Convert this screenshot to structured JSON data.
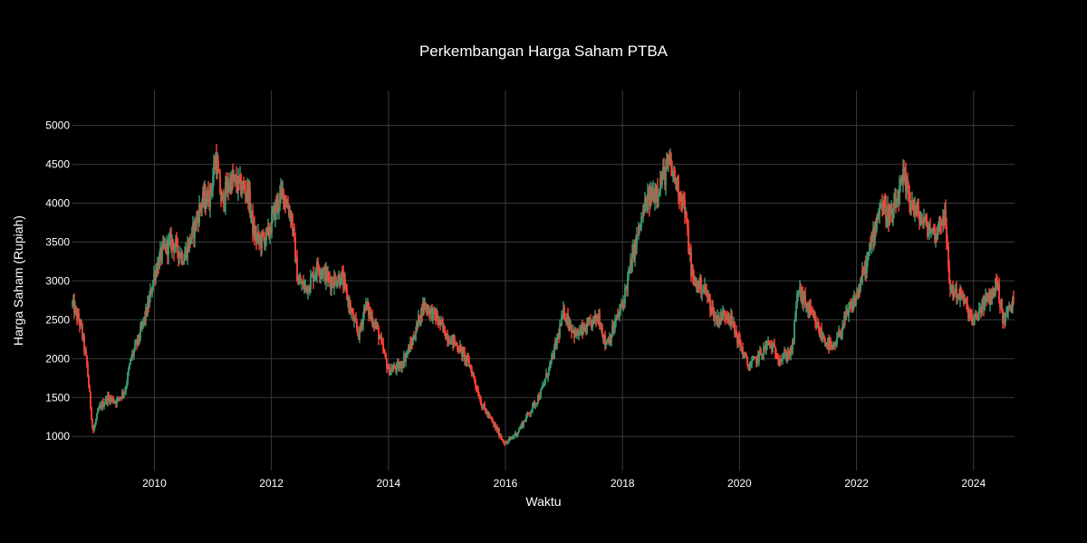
{
  "chart_data": {
    "type": "candlestick",
    "title": "Perkembangan Harga Saham PTBA",
    "xlabel": "Waktu",
    "ylabel": "Harga Saham (Rupiah)",
    "xlim": [
      2008.6,
      2024.7
    ],
    "ylim": [
      560,
      5450
    ],
    "x_ticks": [
      2010,
      2012,
      2014,
      2016,
      2018,
      2020,
      2022,
      2024
    ],
    "x_tick_labels": [
      "2010",
      "2012",
      "2014",
      "2016",
      "2018",
      "2020",
      "2022",
      "2024"
    ],
    "y_ticks": [
      1000,
      1500,
      2000,
      2500,
      3000,
      3500,
      4000,
      4500,
      5000
    ],
    "y_tick_labels": [
      "1000",
      "1500",
      "2000",
      "2500",
      "3000",
      "3500",
      "4000",
      "4500",
      "5000"
    ],
    "grid": true,
    "increasing_color": "#3d9970",
    "decreasing_color": "#ff4136",
    "price_path": {
      "x": [
        2008.6,
        2008.75,
        2008.85,
        2008.95,
        2009.05,
        2009.2,
        2009.35,
        2009.5,
        2009.6,
        2009.75,
        2009.9,
        2010.0,
        2010.15,
        2010.3,
        2010.5,
        2010.65,
        2010.8,
        2010.95,
        2011.05,
        2011.15,
        2011.3,
        2011.5,
        2011.6,
        2011.7,
        2011.8,
        2011.95,
        2012.05,
        2012.2,
        2012.35,
        2012.45,
        2012.6,
        2012.8,
        2013.0,
        2013.2,
        2013.4,
        2013.5,
        2013.6,
        2013.8,
        2014.0,
        2014.2,
        2014.4,
        2014.6,
        2014.8,
        2015.0,
        2015.2,
        2015.4,
        2015.6,
        2015.8,
        2016.0,
        2016.2,
        2016.4,
        2016.6,
        2016.8,
        2017.0,
        2017.2,
        2017.4,
        2017.6,
        2017.7,
        2017.8,
        2018.0,
        2018.2,
        2018.4,
        2018.6,
        2018.8,
        2018.9,
        2019.05,
        2019.2,
        2019.4,
        2019.6,
        2019.8,
        2020.0,
        2020.15,
        2020.3,
        2020.5,
        2020.7,
        2020.9,
        2021.0,
        2021.2,
        2021.4,
        2021.6,
        2021.8,
        2022.0,
        2022.2,
        2022.4,
        2022.6,
        2022.8,
        2023.0,
        2023.2,
        2023.35,
        2023.5,
        2023.6,
        2023.8,
        2024.0,
        2024.15,
        2024.3,
        2024.4,
        2024.5,
        2024.7
      ],
      "close": [
        2700,
        2400,
        1900,
        1050,
        1350,
        1500,
        1450,
        1600,
        2000,
        2300,
        2700,
        3100,
        3400,
        3500,
        3300,
        3600,
        4000,
        4100,
        4600,
        4000,
        4300,
        4200,
        4150,
        3600,
        3500,
        3600,
        3900,
        4150,
        3800,
        3000,
        2900,
        3200,
        3000,
        3050,
        2500,
        2300,
        2700,
        2400,
        1850,
        1900,
        2200,
        2700,
        2550,
        2300,
        2150,
        1900,
        1400,
        1150,
        900,
        1050,
        1300,
        1550,
        2000,
        2600,
        2300,
        2400,
        2550,
        2200,
        2300,
        2700,
        3400,
        4000,
        4200,
        4500,
        4300,
        4000,
        3000,
        2900,
        2500,
        2600,
        2200,
        1900,
        2000,
        2200,
        2000,
        2100,
        2900,
        2600,
        2300,
        2100,
        2500,
        2800,
        3300,
        4000,
        3800,
        4300,
        3900,
        3700,
        3600,
        3900,
        2900,
        2800,
        2450,
        2700,
        2800,
        3000,
        2500,
        2750
      ]
    }
  }
}
